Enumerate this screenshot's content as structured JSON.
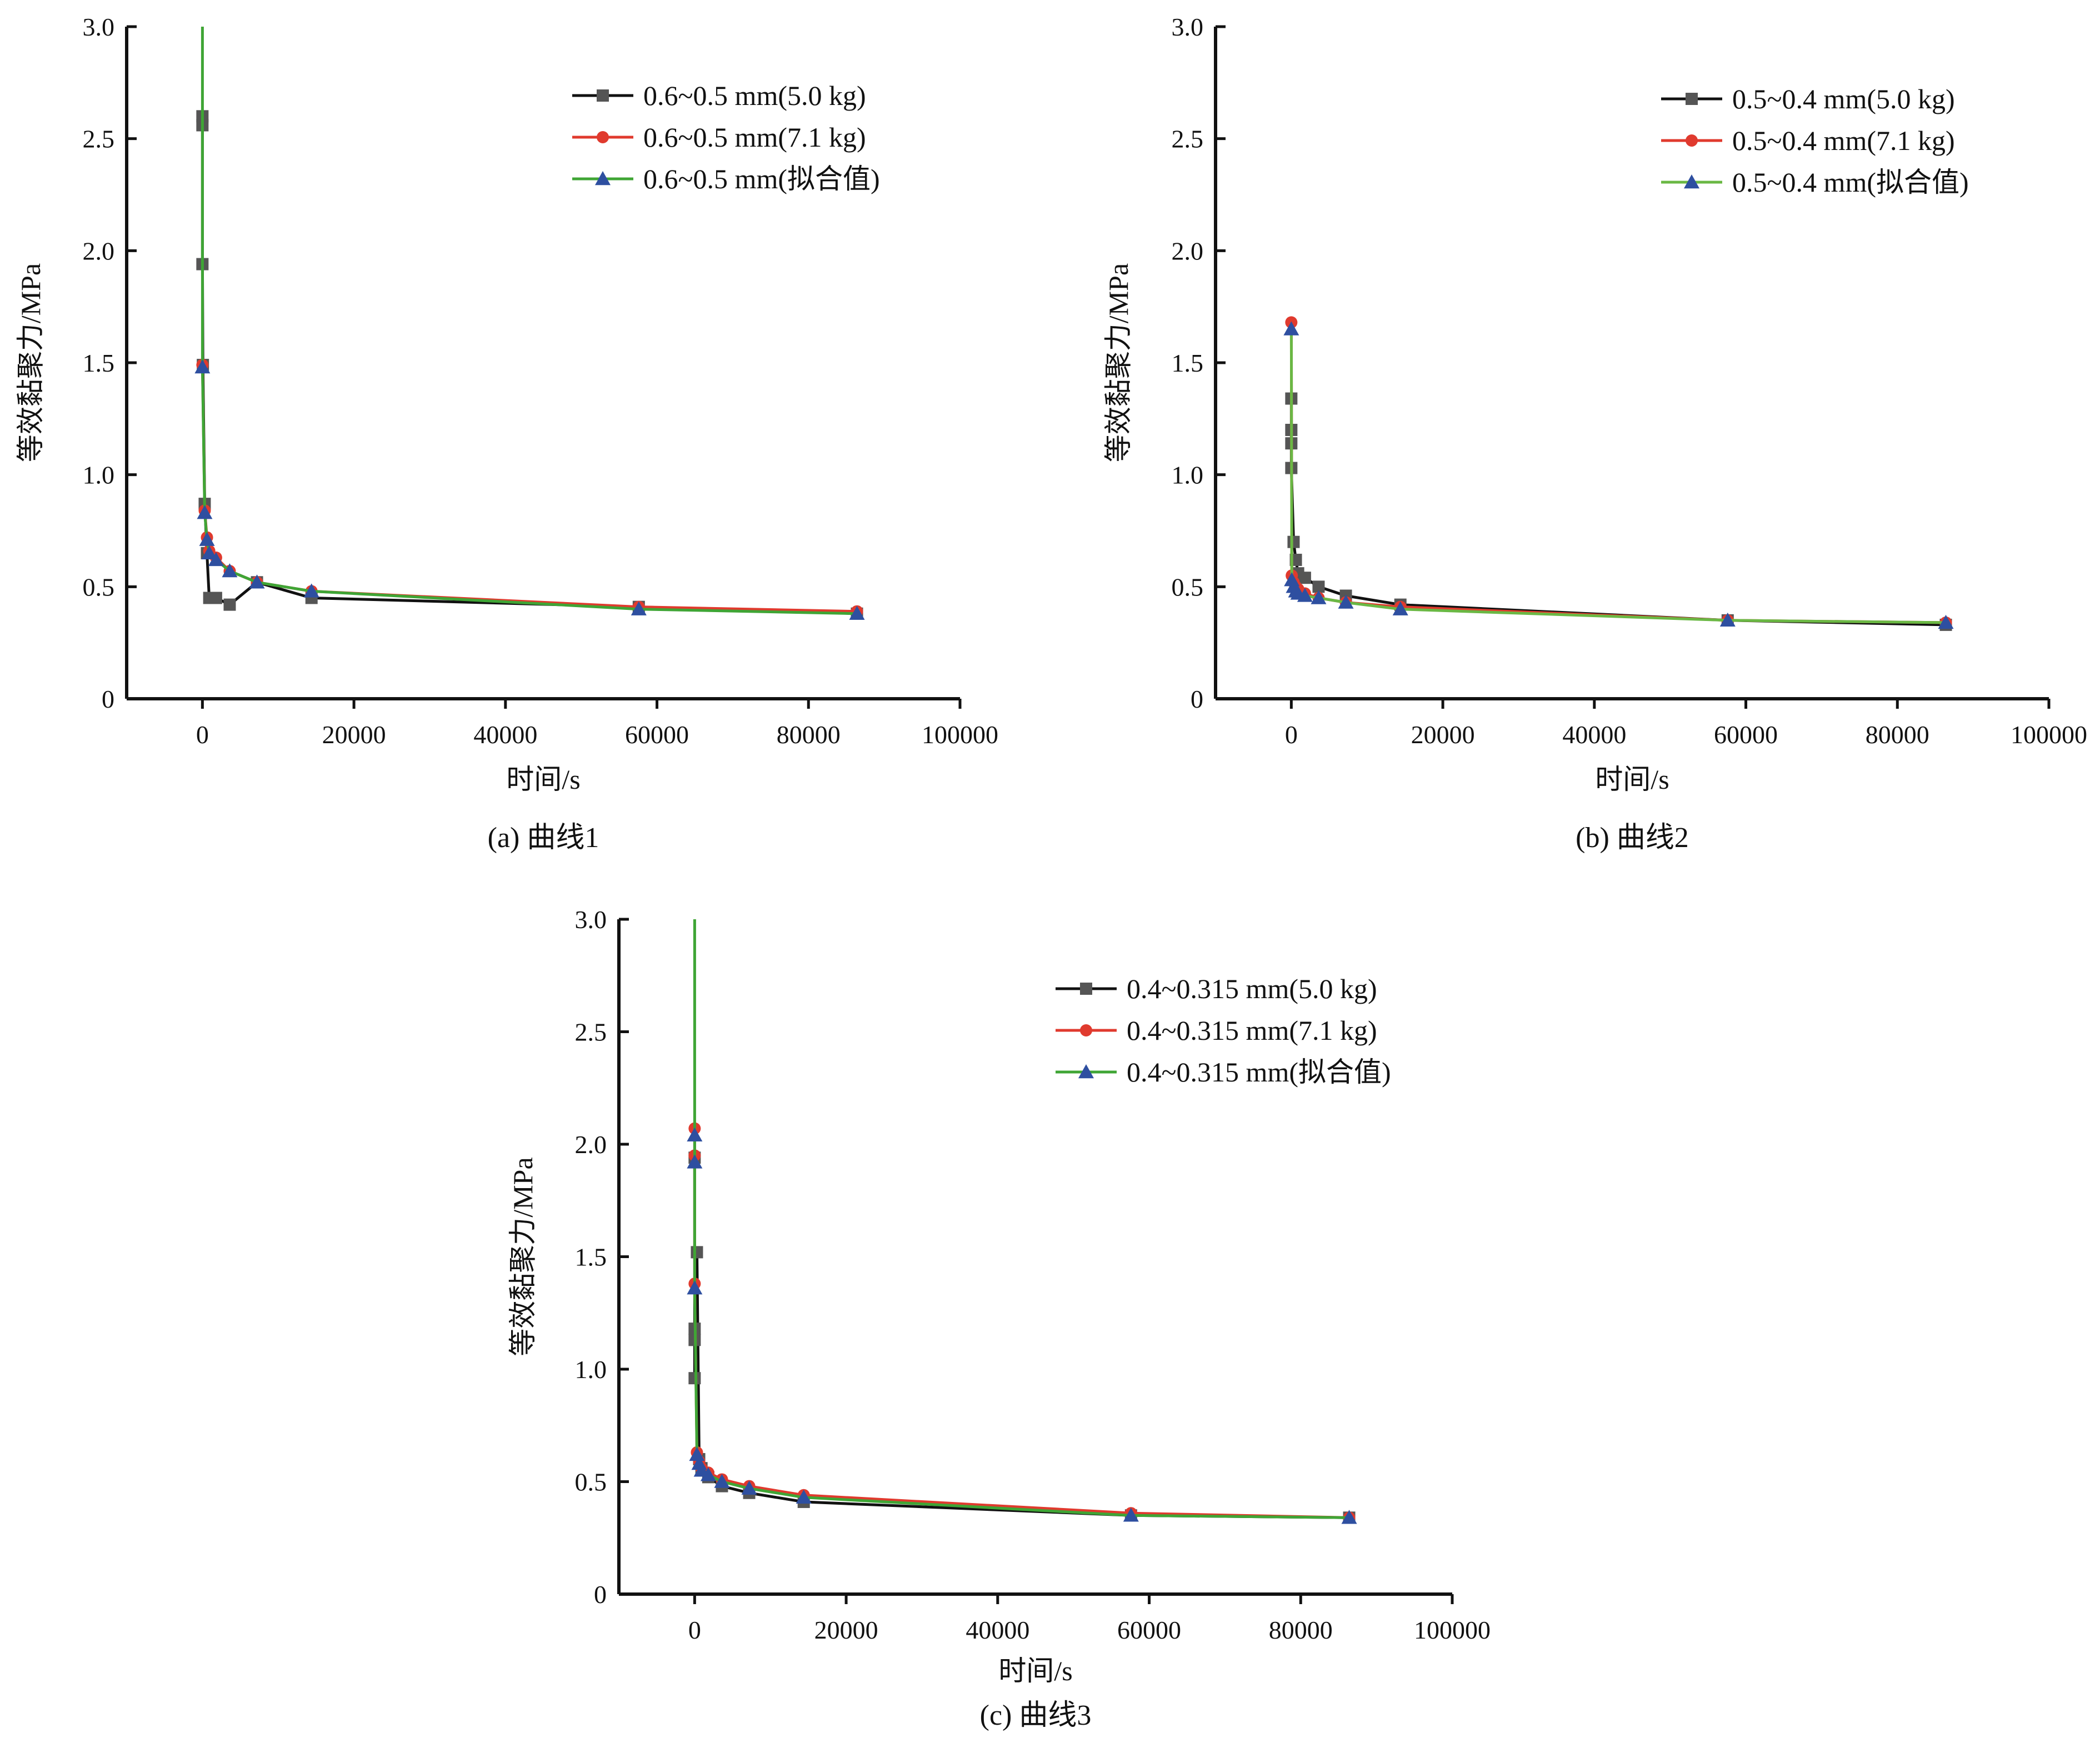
{
  "chart_data": [
    {
      "type": "line",
      "caption": "(a) 曲线1",
      "xlabel": "时间/s",
      "ylabel": "等效黏聚力/MPa",
      "xlim": [
        -10000,
        100000
      ],
      "ylim": [
        0,
        3.0
      ],
      "xticks": [
        0,
        20000,
        40000,
        60000,
        80000,
        100000
      ],
      "xtick_labels": [
        "0",
        "20000",
        "40000",
        "60000",
        "80000",
        "100000"
      ],
      "yticks": [
        0,
        0.5,
        1.0,
        1.5,
        2.0,
        2.5,
        3.0
      ],
      "ytick_labels": [
        "0",
        "0.5",
        "1.0",
        "1.5",
        "2.0",
        "2.5",
        "3.0"
      ],
      "legend_position": "top-right",
      "series": [
        {
          "name": "0.6~0.5 mm(5.0 kg)",
          "color": "#111111",
          "marker_color": "#555555",
          "marker": "square",
          "x": [
            0,
            0,
            0,
            60,
            300,
            600,
            900,
            1200,
            1800,
            3600,
            7200,
            14400,
            57600,
            86400
          ],
          "y": [
            2.6,
            2.56,
            1.94,
            1.49,
            0.87,
            0.65,
            0.45,
            0.45,
            0.45,
            0.42,
            0.52,
            0.45,
            0.41,
            0.38
          ]
        },
        {
          "name": "0.6~0.5 mm(7.1 kg)",
          "color": "#e03a2e",
          "marker_color": "#e03a2e",
          "marker": "circle",
          "x": [
            0,
            300,
            600,
            900,
            1800,
            3600,
            7200,
            14400,
            57600,
            86400
          ],
          "y": [
            1.49,
            0.84,
            0.72,
            0.66,
            0.63,
            0.57,
            0.52,
            0.48,
            0.41,
            0.39
          ]
        },
        {
          "name": "0.6~0.5 mm(拟合值)",
          "color": "#3fa535",
          "marker_color": "#2e4fa0",
          "marker": "triangle",
          "x": [
            0,
            0,
            300,
            600,
            900,
            1800,
            3600,
            7200,
            14400,
            57600,
            86400
          ],
          "y": [
            3.0,
            1.48,
            0.83,
            0.71,
            0.65,
            0.62,
            0.57,
            0.52,
            0.48,
            0.4,
            0.38
          ]
        }
      ]
    },
    {
      "type": "line",
      "caption": "(b) 曲线2",
      "xlabel": "时间/s",
      "ylabel": "等效黏聚力/MPa",
      "xlim": [
        -10000,
        100000
      ],
      "ylim": [
        0,
        3.0
      ],
      "xticks": [
        0,
        20000,
        40000,
        60000,
        80000,
        100000
      ],
      "xtick_labels": [
        "0",
        "20000",
        "40000",
        "60000",
        "80000",
        "100000"
      ],
      "yticks": [
        0,
        0.5,
        1.0,
        1.5,
        2.0,
        2.5,
        3.0
      ],
      "ytick_labels": [
        "0",
        "0.5",
        "1.0",
        "1.5",
        "2.0",
        "2.5",
        "3.0"
      ],
      "legend_position": "top-right",
      "series": [
        {
          "name": "0.5~0.4 mm(5.0 kg)",
          "color": "#111111",
          "marker_color": "#555555",
          "marker": "square",
          "x": [
            0,
            0,
            0,
            0,
            300,
            600,
            900,
            1800,
            3600,
            7200,
            14400,
            57600,
            86400
          ],
          "y": [
            1.34,
            1.2,
            1.14,
            1.03,
            0.7,
            0.62,
            0.56,
            0.54,
            0.5,
            0.46,
            0.42,
            0.35,
            0.33
          ]
        },
        {
          "name": "0.5~0.4 mm(7.1 kg)",
          "color": "#e03a2e",
          "marker_color": "#e03a2e",
          "marker": "circle",
          "x": [
            0,
            60,
            300,
            600,
            900,
            1800,
            3600,
            7200,
            14400,
            57600,
            86400
          ],
          "y": [
            1.68,
            0.55,
            0.52,
            0.5,
            0.49,
            0.47,
            0.45,
            0.43,
            0.41,
            0.35,
            0.34
          ]
        },
        {
          "name": "0.5~0.4 mm(拟合值)",
          "color": "#6ab844",
          "marker_color": "#2e4fa0",
          "marker": "triangle",
          "x": [
            0,
            60,
            300,
            600,
            900,
            1800,
            3600,
            7200,
            14400,
            57600,
            86400
          ],
          "y": [
            1.65,
            0.53,
            0.5,
            0.48,
            0.47,
            0.46,
            0.45,
            0.43,
            0.4,
            0.35,
            0.34
          ]
        }
      ]
    },
    {
      "type": "line",
      "caption": "(c) 曲线3",
      "xlabel": "时间/s",
      "ylabel": "等效黏聚力/MPa",
      "xlim": [
        -10000,
        100000
      ],
      "ylim": [
        0,
        3.0
      ],
      "xticks": [
        0,
        20000,
        40000,
        60000,
        80000,
        100000
      ],
      "xtick_labels": [
        "0",
        "20000",
        "40000",
        "60000",
        "80000",
        "100000"
      ],
      "yticks": [
        0,
        0.5,
        1.0,
        1.5,
        2.0,
        2.5,
        3.0
      ],
      "ytick_labels": [
        "0",
        "0.5",
        "1.0",
        "1.5",
        "2.0",
        "2.5",
        "3.0"
      ],
      "legend_position": "top-right",
      "series": [
        {
          "name": "0.4~0.315 mm(5.0 kg)",
          "color": "#111111",
          "marker_color": "#555555",
          "marker": "square",
          "x": [
            0,
            0,
            0,
            0,
            300,
            600,
            900,
            1800,
            3600,
            7200,
            14400,
            57600,
            86400
          ],
          "y": [
            1.94,
            1.18,
            1.13,
            0.96,
            1.52,
            0.6,
            0.56,
            0.52,
            0.48,
            0.45,
            0.41,
            0.35,
            0.34
          ]
        },
        {
          "name": "0.4~0.315 mm(7.1 kg)",
          "color": "#e03a2e",
          "marker_color": "#e03a2e",
          "marker": "circle",
          "x": [
            0,
            0,
            0,
            300,
            600,
            900,
            1800,
            3600,
            7200,
            14400,
            57600,
            86400
          ],
          "y": [
            2.07,
            1.95,
            1.38,
            0.63,
            0.59,
            0.56,
            0.54,
            0.51,
            0.48,
            0.44,
            0.36,
            0.34
          ]
        },
        {
          "name": "0.4~0.315 mm(拟合值)",
          "color": "#3fa535",
          "marker_color": "#2e4fa0",
          "marker": "triangle",
          "x": [
            0,
            0,
            0,
            0,
            300,
            600,
            900,
            1800,
            3600,
            7200,
            14400,
            57600,
            86400
          ],
          "y": [
            3.0,
            2.04,
            1.92,
            1.36,
            0.62,
            0.58,
            0.55,
            0.53,
            0.5,
            0.47,
            0.43,
            0.35,
            0.34
          ]
        }
      ]
    }
  ]
}
